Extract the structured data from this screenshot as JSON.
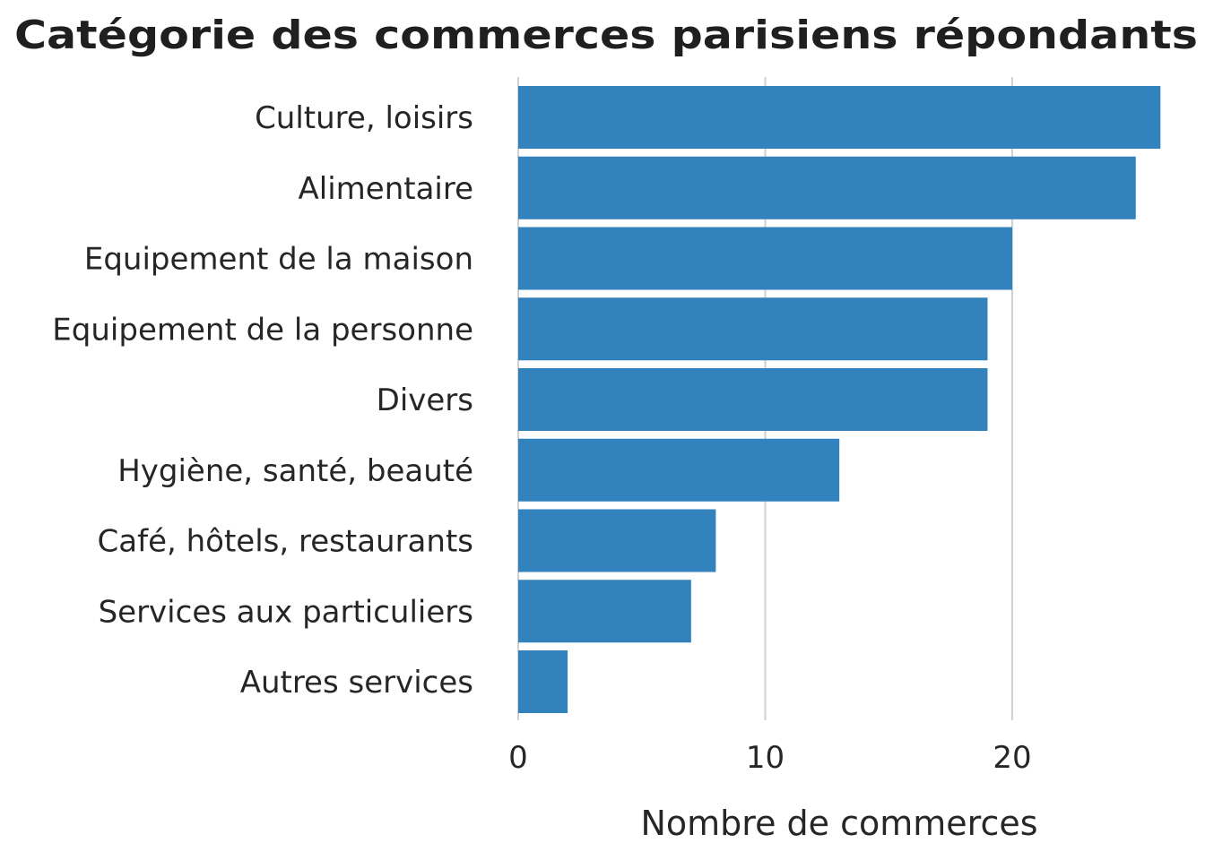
{
  "chart_data": {
    "type": "bar",
    "orientation": "horizontal",
    "title": "Catégorie des commerces parisiens répondants",
    "xlabel": "Nombre de commerces",
    "ylabel": "",
    "categories": [
      "Culture, loisirs",
      "Alimentaire",
      "Equipement de la maison",
      "Equipement de la personne",
      "Divers",
      "Hygiène, santé, beauté",
      "Café, hôtels, restaurants",
      "Services aux particuliers",
      "Autres services"
    ],
    "values": [
      26,
      25,
      20,
      19,
      19,
      13,
      8,
      7,
      2
    ],
    "xlim": [
      0,
      27
    ],
    "xticks": [
      0,
      10,
      20
    ],
    "xtick_labels": [
      "0",
      "10",
      "20"
    ],
    "grid": "vertical",
    "legend": "none",
    "bar_color": "#3182bd"
  }
}
